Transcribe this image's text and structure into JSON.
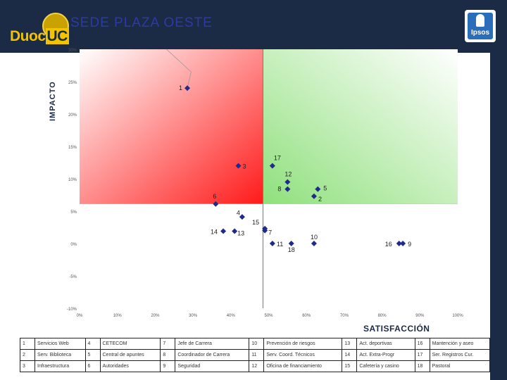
{
  "header": {
    "title": "SEDE PLAZA OESTE",
    "logo_left_text": "DuocUC",
    "logo_right_text": "Ipsos"
  },
  "colors": {
    "header_bg": "#1b2a45",
    "quadrant_red": "#ff2020",
    "quadrant_green": "#7fd86a",
    "marker": "#1f2a8a",
    "title": "#2d3aa6"
  },
  "chart_data": {
    "type": "scatter",
    "title": "",
    "xlabel": "SATISFACCIÓN",
    "ylabel": "IMPACTO",
    "xlim": [
      0,
      100
    ],
    "ylim": [
      -10,
      30
    ],
    "x_ticks": [
      "0%",
      "10%",
      "20%",
      "30%",
      "40%",
      "50%",
      "60%",
      "70%",
      "80%",
      "90%",
      "100%"
    ],
    "y_ticks": [
      "-10%",
      "-5%",
      "0%",
      "5%",
      "10%",
      "15%",
      "20%",
      "25%",
      "30%"
    ],
    "quadrant_split": {
      "x": 48.5,
      "y": 6.1
    },
    "grid": false,
    "points": [
      {
        "label": "1",
        "x": 28.5,
        "y": 24.0
      },
      {
        "label": "3",
        "x": 42.0,
        "y": 12.0
      },
      {
        "label": "17",
        "x": 51.0,
        "y": 12.0
      },
      {
        "label": "12",
        "x": 55.0,
        "y": 9.5
      },
      {
        "label": "8",
        "x": 55.0,
        "y": 8.4
      },
      {
        "label": "5",
        "x": 63.0,
        "y": 8.4
      },
      {
        "label": "2",
        "x": 62.0,
        "y": 7.3
      },
      {
        "label": "6",
        "x": 36.0,
        "y": 6.1
      },
      {
        "label": "4",
        "x": 43.0,
        "y": 4.1
      },
      {
        "label": "15",
        "x": 49.0,
        "y": 2.3
      },
      {
        "label": "7",
        "x": 49.0,
        "y": 2.0
      },
      {
        "label": "14",
        "x": 38.0,
        "y": 1.9
      },
      {
        "label": "13",
        "x": 41.0,
        "y": 1.9
      },
      {
        "label": "11",
        "x": 51.0,
        "y": 0.0
      },
      {
        "label": "18",
        "x": 56.0,
        "y": 0.0
      },
      {
        "label": "10",
        "x": 62.0,
        "y": 0.0
      },
      {
        "label": "16",
        "x": 84.5,
        "y": 0.0
      },
      {
        "label": "9",
        "x": 85.5,
        "y": 0.0
      }
    ]
  },
  "legend_rows": [
    [
      {
        "n": "1",
        "t": "Servicios Web"
      },
      {
        "n": "4",
        "t": "CETECOM"
      },
      {
        "n": "7",
        "t": "Jefe de Carrera"
      },
      {
        "n": "10",
        "t": "Prevención de riesgos"
      },
      {
        "n": "13",
        "t": "Act. deportivas"
      },
      {
        "n": "16",
        "t": "Mantención y aseo"
      }
    ],
    [
      {
        "n": "2",
        "t": "Serv. Biblioteca"
      },
      {
        "n": "5",
        "t": "Central de apuntes"
      },
      {
        "n": "8",
        "t": "Coordinador de Carrera"
      },
      {
        "n": "11",
        "t": "Serv. Coord. Técnicos"
      },
      {
        "n": "14",
        "t": "Act. Extra-Progr"
      },
      {
        "n": "17",
        "t": "Ser. Registros Cur."
      }
    ],
    [
      {
        "n": "3",
        "t": "Infraestructura"
      },
      {
        "n": "6",
        "t": "Autoridades"
      },
      {
        "n": "9",
        "t": "Seguridad"
      },
      {
        "n": "12",
        "t": "Oficina de financiamiento"
      },
      {
        "n": "15",
        "t": "Cafetería y casino"
      },
      {
        "n": "18",
        "t": "Pastoral"
      }
    ]
  ]
}
